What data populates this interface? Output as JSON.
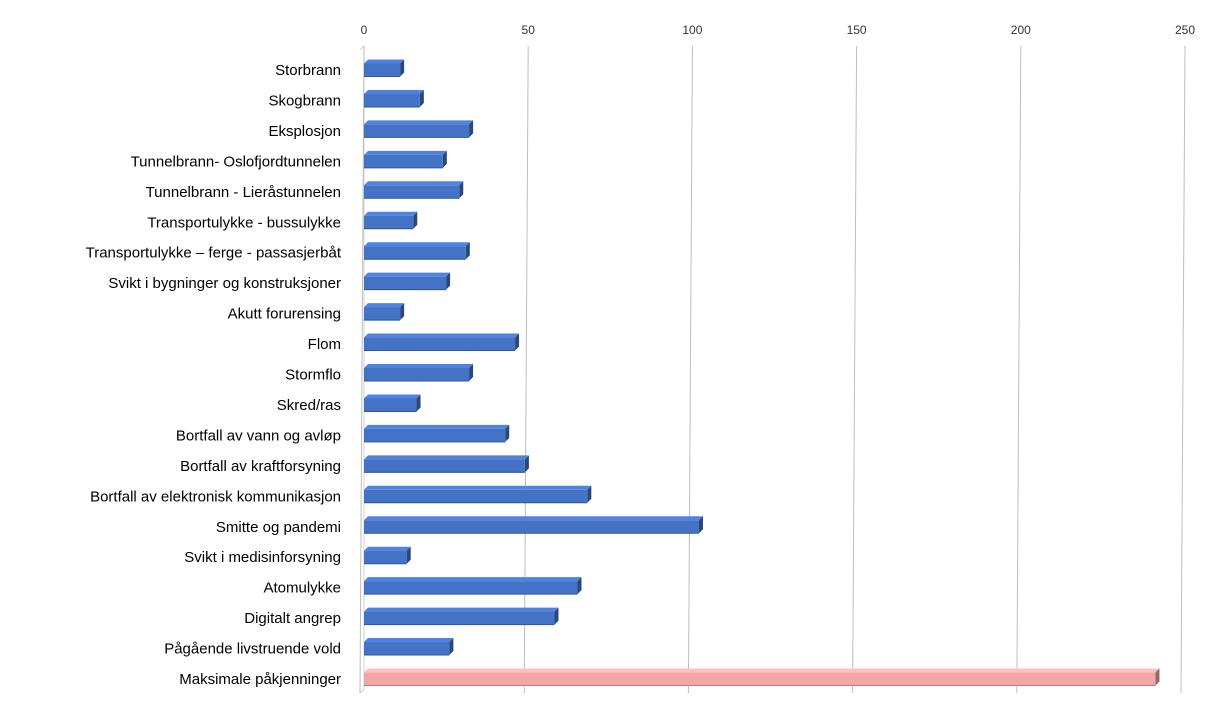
{
  "chart_data": {
    "type": "bar",
    "orientation": "horizontal",
    "title": "",
    "xlabel": "",
    "ylabel": "",
    "xlim": [
      0,
      250
    ],
    "x_ticks": [
      0,
      50,
      100,
      150,
      200,
      250
    ],
    "x_axis_position": "top",
    "grid": true,
    "legend": "none",
    "categories": [
      "Storbrann",
      "Skogbrann",
      "Eksplosjon",
      "Tunnelbrann- Oslofjordtunnelen",
      "Tunnelbrann - Lieråstunnelen",
      "Transportulykke - bussulykke",
      "Transportulykke – ferge - passasjerbåt",
      "Svikt i bygninger og konstruksjoner",
      "Akutt forurensing",
      "Flom",
      "Stormflo",
      "Skred/ras",
      "Bortfall av vann og avløp",
      "Bortfall av kraftforsyning",
      "Bortfall av elektronisk kommunikasjon",
      "Smitte og pandemi",
      "Svikt i medisinforsyning",
      "Atomulykke",
      "Digitalt angrep",
      "Pågående livstruende vold",
      "Maksimale påkjenninger"
    ],
    "values": [
      11,
      17,
      32,
      24,
      29,
      15,
      31,
      25,
      11,
      46,
      32,
      16,
      43,
      49,
      68,
      102,
      13,
      65,
      58,
      26,
      241
    ],
    "colors": {
      "default": "#4472c4",
      "highlight": "#f4a6a6",
      "highlight_category": "Maksimale påkjenninger"
    }
  }
}
